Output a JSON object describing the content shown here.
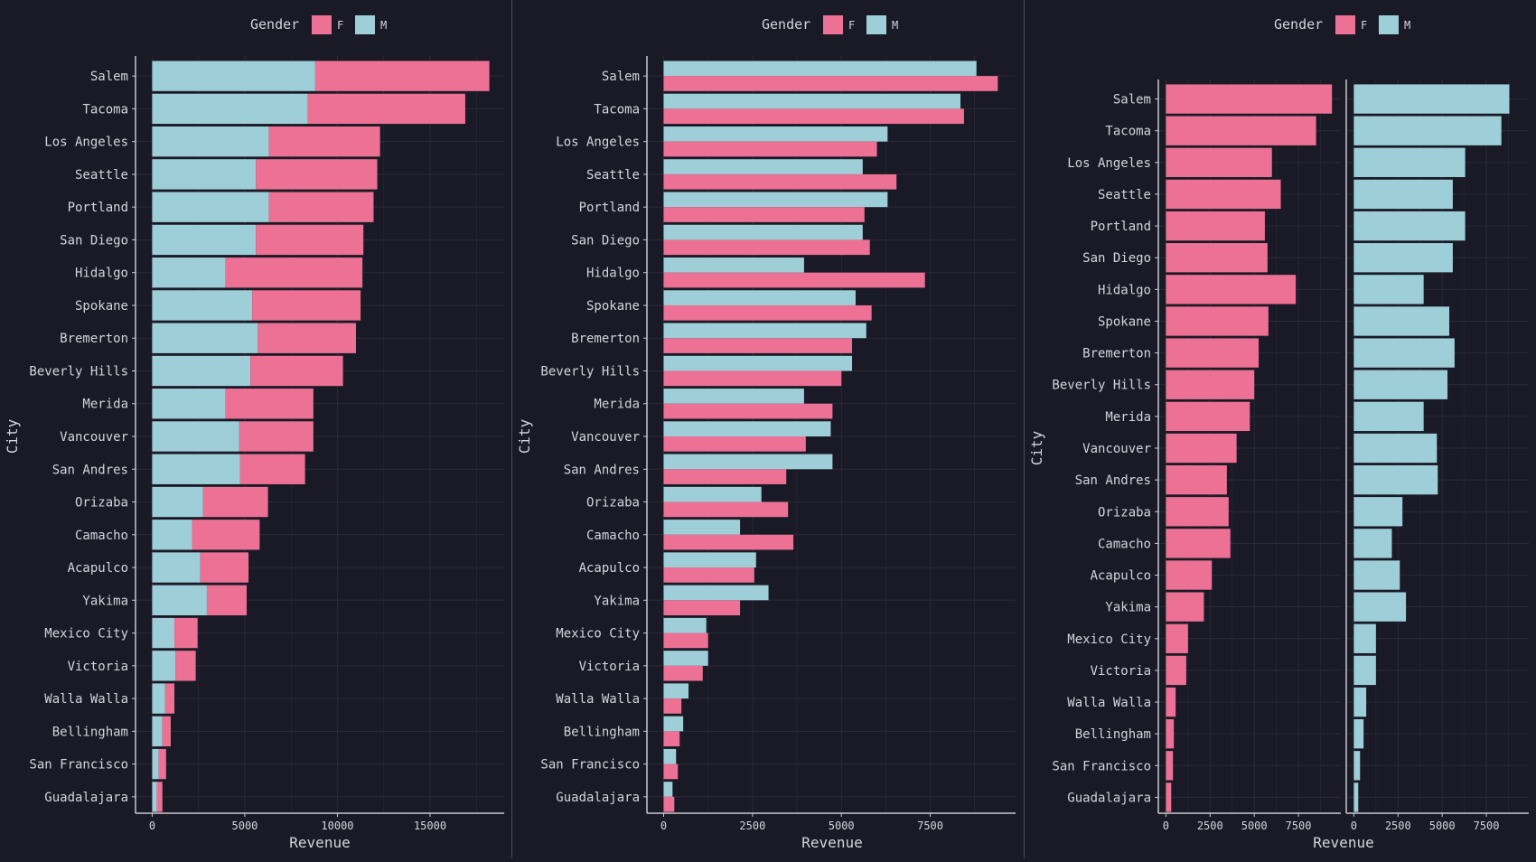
{
  "colors": {
    "background": "#1a1a26",
    "female": "#ec7194",
    "male": "#9ecfd8",
    "text": "#d4d4dc",
    "axis": "#c8c8d0",
    "grid": "#2a2a38",
    "divider": "#4a4a5a"
  },
  "chart_data": [
    {
      "type": "bar",
      "layout": "stacked",
      "orientation": "horizontal",
      "xlabel": "Revenue",
      "ylabel": "City",
      "xlim": [
        -900,
        19000
      ],
      "xticks": [
        0,
        5000,
        10000,
        15000
      ],
      "xtick_labels": [
        "0",
        "5000",
        "10000",
        "15000"
      ],
      "legend": {
        "title": "Gender",
        "position": "top",
        "entries": [
          "F",
          "M"
        ]
      },
      "grid": true,
      "categories": [
        "Salem",
        "Tacoma",
        "Los Angeles",
        "Seattle",
        "Portland",
        "San Diego",
        "Hidalgo",
        "Spokane",
        "Bremerton",
        "Beverly Hills",
        "Merida",
        "Vancouver",
        "San Andres",
        "Orizaba",
        "Camacho",
        "Acapulco",
        "Yakima",
        "Mexico City",
        "Victoria",
        "Walla Walla",
        "Bellingham",
        "San Francisco",
        "Guadalajara"
      ],
      "series": [
        {
          "name": "M",
          "values": [
            8800,
            8400,
            6300,
            5600,
            6300,
            5600,
            3950,
            5400,
            5700,
            5300,
            3950,
            4700,
            4750,
            2750,
            2150,
            2600,
            2950,
            1200,
            1250,
            700,
            550,
            350,
            250
          ]
        },
        {
          "name": "F",
          "values": [
            9400,
            8500,
            6000,
            6550,
            5650,
            5800,
            7400,
            5850,
            5300,
            5000,
            4750,
            4000,
            3500,
            3500,
            3650,
            2600,
            2150,
            1250,
            1100,
            500,
            450,
            400,
            300
          ]
        }
      ]
    },
    {
      "type": "bar",
      "layout": "dodged",
      "orientation": "horizontal",
      "xlabel": "Revenue",
      "ylabel": "City",
      "xlim": [
        -470,
        9900
      ],
      "xticks": [
        0,
        2500,
        5000,
        7500
      ],
      "xtick_labels": [
        "0",
        "2500",
        "5000",
        "7500"
      ],
      "legend": {
        "title": "Gender",
        "position": "top",
        "entries": [
          "F",
          "M"
        ]
      },
      "grid": true,
      "categories": [
        "Salem",
        "Tacoma",
        "Los Angeles",
        "Seattle",
        "Portland",
        "San Diego",
        "Hidalgo",
        "Spokane",
        "Bremerton",
        "Beverly Hills",
        "Merida",
        "Vancouver",
        "San Andres",
        "Orizaba",
        "Camacho",
        "Acapulco",
        "Yakima",
        "Mexico City",
        "Victoria",
        "Walla Walla",
        "Bellingham",
        "San Francisco",
        "Guadalajara"
      ],
      "series": [
        {
          "name": "M",
          "values": [
            8800,
            8350,
            6300,
            5600,
            6300,
            5600,
            3950,
            5400,
            5700,
            5300,
            3950,
            4700,
            4750,
            2750,
            2150,
            2600,
            2950,
            1200,
            1250,
            700,
            550,
            350,
            250
          ]
        },
        {
          "name": "F",
          "values": [
            9400,
            8450,
            6000,
            6550,
            5650,
            5800,
            7350,
            5850,
            5300,
            5000,
            4750,
            4000,
            3450,
            3500,
            3650,
            2550,
            2150,
            1250,
            1100,
            500,
            450,
            400,
            300
          ]
        }
      ]
    },
    {
      "type": "bar",
      "layout": "faceted",
      "orientation": "horizontal",
      "xlabel": "Revenue",
      "ylabel": "City",
      "xlim": [
        -430,
        9900
      ],
      "xticks": [
        0,
        2500,
        5000,
        7500
      ],
      "xtick_labels": [
        "0",
        "2500",
        "5000",
        "7500"
      ],
      "legend": {
        "title": "Gender",
        "position": "top",
        "entries": [
          "F",
          "M"
        ]
      },
      "grid": true,
      "categories": [
        "Salem",
        "Tacoma",
        "Los Angeles",
        "Seattle",
        "Portland",
        "San Diego",
        "Hidalgo",
        "Spokane",
        "Bremerton",
        "Beverly Hills",
        "Merida",
        "Vancouver",
        "San Andres",
        "Orizaba",
        "Camacho",
        "Acapulco",
        "Yakima",
        "Mexico City",
        "Victoria",
        "Walla Walla",
        "Bellingham",
        "San Francisco",
        "Guadalajara"
      ],
      "series": [
        {
          "name": "F",
          "values": [
            9400,
            8500,
            6000,
            6500,
            5600,
            5750,
            7350,
            5800,
            5250,
            5000,
            4750,
            4000,
            3450,
            3550,
            3650,
            2600,
            2150,
            1250,
            1150,
            550,
            450,
            400,
            300
          ]
        },
        {
          "name": "M",
          "values": [
            8800,
            8350,
            6300,
            5600,
            6300,
            5600,
            3950,
            5400,
            5700,
            5300,
            3950,
            4700,
            4750,
            2750,
            2150,
            2600,
            2950,
            1250,
            1250,
            700,
            550,
            350,
            250
          ]
        }
      ]
    }
  ]
}
